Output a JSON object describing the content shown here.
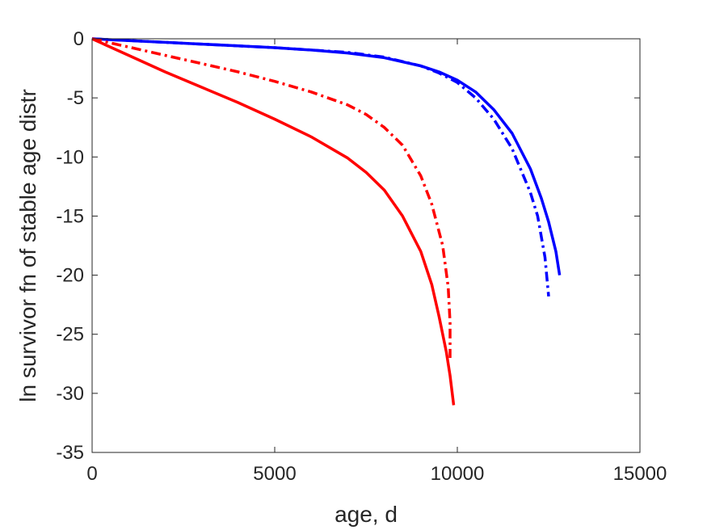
{
  "chart_data": {
    "type": "line",
    "title": "",
    "xlabel": "age, d",
    "ylabel": "ln survivor fn of stable age distr",
    "xlim": [
      0,
      15000
    ],
    "ylim": [
      -35,
      0
    ],
    "xticks": [
      0,
      5000,
      10000,
      15000
    ],
    "yticks": [
      0,
      -5,
      -10,
      -15,
      -20,
      -25,
      -30,
      -35
    ],
    "xtick_labels": [
      "0",
      "5000",
      "10000",
      "15000"
    ],
    "ytick_labels": [
      "0",
      "-5",
      "-10",
      "-15",
      "-20",
      "-25",
      "-30",
      "-35"
    ],
    "grid": false,
    "legend": "none",
    "series": [
      {
        "color": "#0000ff",
        "style": "solid",
        "x": [
          0,
          1000,
          2000,
          3000,
          4000,
          5000,
          6000,
          7000,
          8000,
          9000,
          9500,
          10000,
          10500,
          11000,
          11500,
          12000,
          12300,
          12500,
          12700,
          12800
        ],
        "y": [
          0,
          -0.15,
          -0.3,
          -0.45,
          -0.6,
          -0.75,
          -0.95,
          -1.2,
          -1.6,
          -2.3,
          -2.8,
          -3.5,
          -4.5,
          -6.0,
          -8.0,
          -11.0,
          -13.5,
          -15.5,
          -18.0,
          -20.0
        ]
      },
      {
        "color": "#0000ff",
        "style": "dashdot",
        "x": [
          0,
          1000,
          2000,
          3000,
          4000,
          5000,
          6000,
          7000,
          8000,
          9000,
          9500,
          10000,
          10500,
          11000,
          11500,
          12000,
          12200,
          12400,
          12500
        ],
        "y": [
          0,
          -0.15,
          -0.3,
          -0.45,
          -0.6,
          -0.75,
          -0.95,
          -1.15,
          -1.55,
          -2.3,
          -2.9,
          -3.7,
          -5.0,
          -6.8,
          -9.3,
          -13.0,
          -15.0,
          -18.5,
          -21.8
        ]
      },
      {
        "color": "#ff0000",
        "style": "dashdot",
        "x": [
          0,
          1000,
          2000,
          3000,
          4000,
          5000,
          6000,
          7000,
          7500,
          8000,
          8500,
          9000,
          9300,
          9600,
          9750,
          9800,
          9800
        ],
        "y": [
          0,
          -0.7,
          -1.4,
          -2.1,
          -2.8,
          -3.6,
          -4.5,
          -5.6,
          -6.4,
          -7.5,
          -9.0,
          -11.6,
          -14.0,
          -17.5,
          -21.0,
          -24.0,
          -27.0
        ]
      },
      {
        "color": "#ff0000",
        "style": "solid",
        "x": [
          0,
          1000,
          2000,
          3000,
          4000,
          5000,
          6000,
          7000,
          7500,
          8000,
          8500,
          9000,
          9300,
          9500,
          9700,
          9800,
          9900
        ],
        "y": [
          0,
          -1.4,
          -2.8,
          -4.1,
          -5.4,
          -6.8,
          -8.3,
          -10.1,
          -11.3,
          -12.8,
          -15.0,
          -18.0,
          -20.8,
          -23.5,
          -26.5,
          -28.5,
          -31.0
        ]
      }
    ]
  }
}
